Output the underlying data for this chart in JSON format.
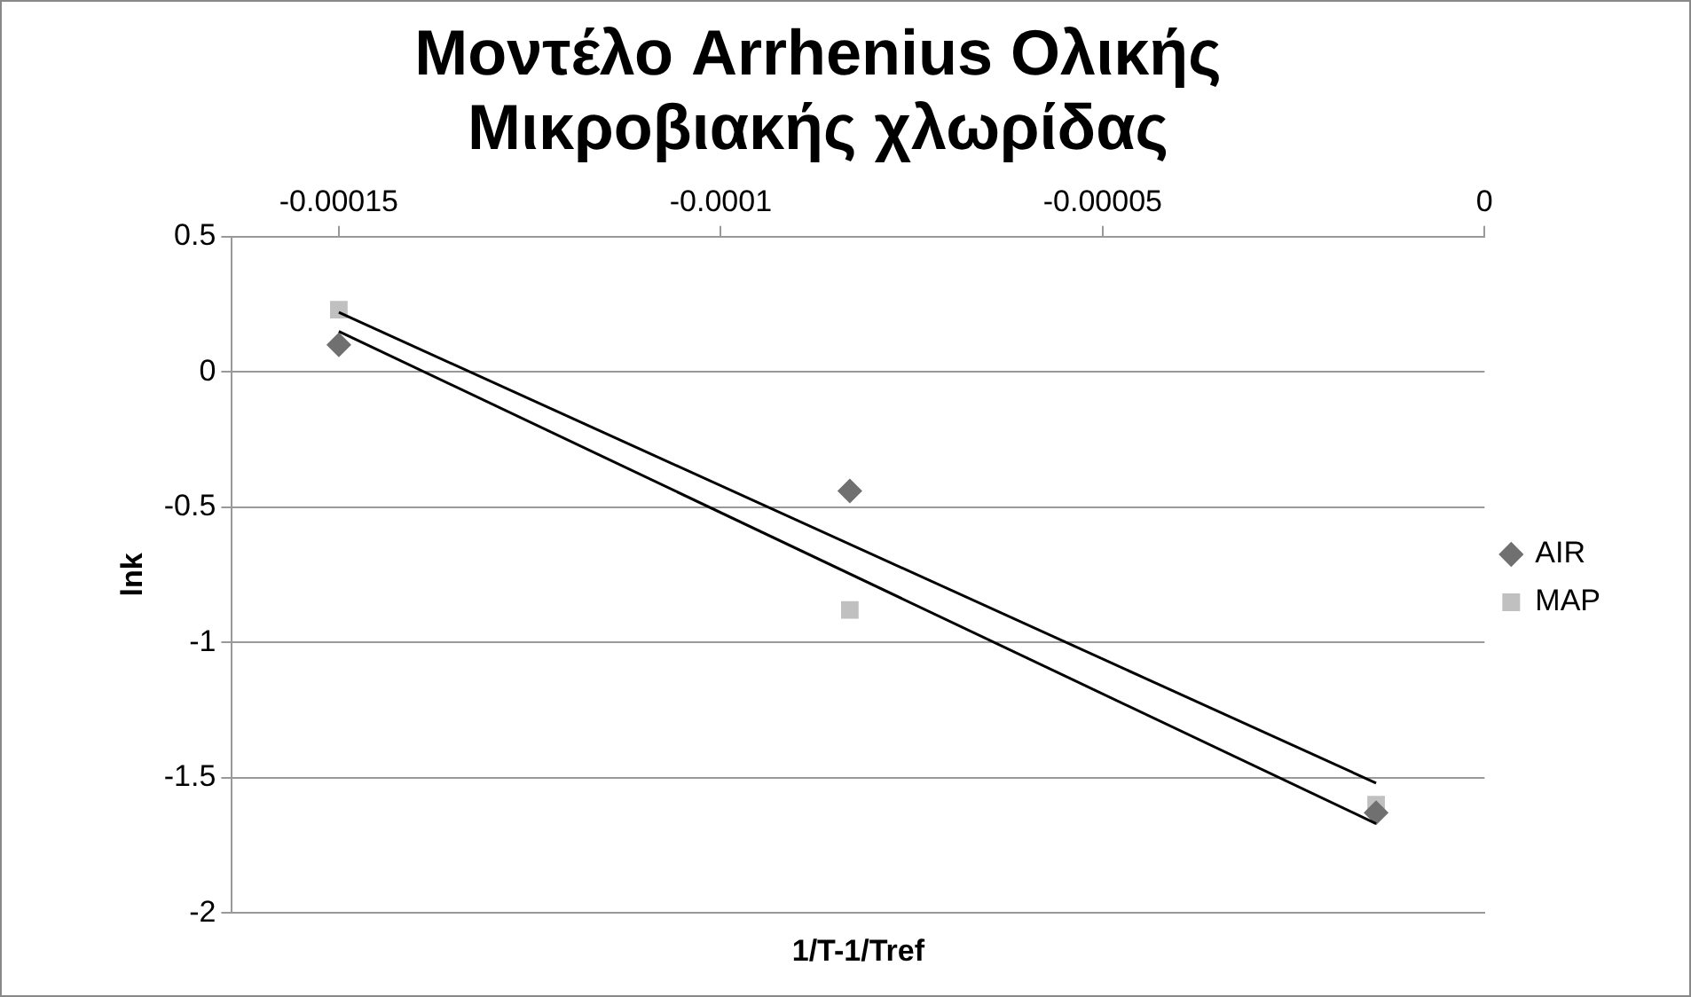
{
  "chart_data": {
    "type": "scatter",
    "title": "Μοντέλο Arrhenius Ολικής Μικροβιακής χλωρίδας",
    "xlabel": "1/T-1/Tref",
    "ylabel": "lnk",
    "xlim": [
      -0.000164,
      0
    ],
    "xticks": [
      -0.00015,
      -0.0001,
      {
        "value": -5e-05,
        "label": "-0.00005"
      },
      0
    ],
    "ylim": [
      -2,
      0.5
    ],
    "yticks": [
      -2,
      -1.5,
      -1,
      -0.5,
      0,
      0.5
    ],
    "grid": "y",
    "legend": "right",
    "series": [
      {
        "name": "AIR",
        "color": "#707070",
        "marker": "diamond",
        "x": [
          -0.00015,
          -8.31e-05,
          -1.42e-05
        ],
        "values": [
          0.1,
          -0.44,
          -1.63
        ]
      },
      {
        "name": "MAP",
        "color": "#c0c0c0",
        "marker": "square",
        "x": [
          -0.00015,
          -8.31e-05,
          -1.42e-05
        ],
        "values": [
          0.23,
          -0.88,
          -1.6
        ]
      },
      {
        "type": "line",
        "color": "#000000",
        "marker": "none",
        "x": [
          -0.00015,
          -1.42e-05
        ],
        "values": [
          0.22,
          -1.52
        ]
      },
      {
        "type": "line",
        "color": "#000000",
        "marker": "none",
        "x": [
          -0.00015,
          -1.42e-05
        ],
        "values": [
          0.15,
          -1.67
        ]
      }
    ]
  }
}
